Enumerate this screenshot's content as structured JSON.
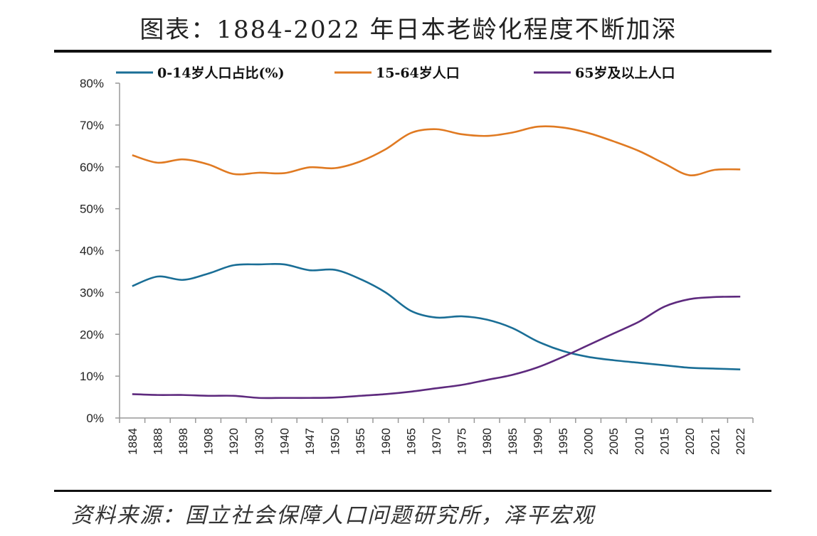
{
  "title": "图表：1884-2022 年日本老龄化程度不断加深",
  "source": "资料来源：国立社会保障人口问题研究所，泽平宏观",
  "chart_data": {
    "type": "line",
    "categories": [
      "1884",
      "1888",
      "1898",
      "1908",
      "1920",
      "1930",
      "1940",
      "1947",
      "1950",
      "1955",
      "1960",
      "1965",
      "1970",
      "1975",
      "1980",
      "1985",
      "1990",
      "1995",
      "2000",
      "2005",
      "2010",
      "2015",
      "2020",
      "2021",
      "2022"
    ],
    "ylim": [
      0,
      80
    ],
    "yticks": [
      "0%",
      "10%",
      "20%",
      "30%",
      "40%",
      "50%",
      "60%",
      "70%",
      "80%"
    ],
    "legend_position": "top",
    "grid": false,
    "series": [
      {
        "name": "0-14岁人口占比(%)",
        "color": "#1a6e96",
        "values": [
          31.5,
          33.8,
          33.0,
          34.5,
          36.5,
          36.7,
          36.7,
          35.3,
          35.4,
          33.2,
          30.0,
          25.6,
          24.0,
          24.3,
          23.5,
          21.5,
          18.3,
          16.0,
          14.6,
          13.8,
          13.2,
          12.6,
          12.0,
          11.8,
          11.6
        ]
      },
      {
        "name": "15-64岁人口",
        "color": "#e07a22",
        "values": [
          62.8,
          61.0,
          61.8,
          60.6,
          58.3,
          58.6,
          58.5,
          59.9,
          59.7,
          61.3,
          64.2,
          68.1,
          69.0,
          67.8,
          67.4,
          68.2,
          69.6,
          69.4,
          68.1,
          66.1,
          63.8,
          60.8,
          58.0,
          59.3,
          59.4
        ]
      },
      {
        "name": "65岁及以上人口",
        "color": "#5e2a7e",
        "values": [
          5.7,
          5.5,
          5.5,
          5.3,
          5.3,
          4.8,
          4.8,
          4.8,
          4.9,
          5.3,
          5.7,
          6.3,
          7.1,
          7.9,
          9.1,
          10.3,
          12.1,
          14.6,
          17.4,
          20.2,
          23.0,
          26.6,
          28.4,
          28.9,
          29.0
        ]
      }
    ]
  }
}
